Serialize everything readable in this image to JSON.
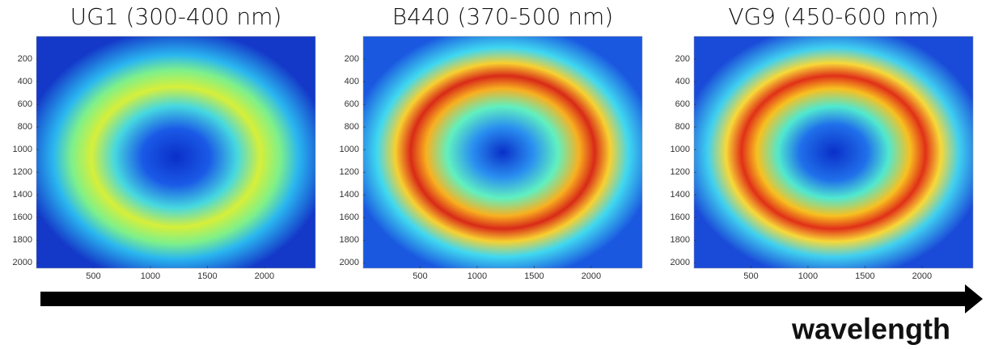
{
  "chart_data": [
    {
      "type": "image",
      "title": "UG1 (300-400 nm)",
      "xlim": [
        0,
        2448
      ],
      "ylim": [
        2048,
        0
      ],
      "xticks": [
        500,
        1000,
        1500,
        2000
      ],
      "yticks": [
        200,
        400,
        600,
        800,
        1000,
        1200,
        1400,
        1600,
        1800,
        2000
      ]
    },
    {
      "type": "image",
      "title": "B440 (370-500 nm)",
      "xlim": [
        0,
        2448
      ],
      "ylim": [
        2048,
        0
      ],
      "xticks": [
        500,
        1000,
        1500,
        2000
      ],
      "yticks": [
        200,
        400,
        600,
        800,
        1000,
        1200,
        1400,
        1600,
        1800,
        2000
      ]
    },
    {
      "type": "image",
      "title": "VG9 (450-600 nm)",
      "xlim": [
        0,
        2448
      ],
      "ylim": [
        2048,
        0
      ],
      "xticks": [
        500,
        1000,
        1500,
        2000
      ],
      "yticks": [
        200,
        400,
        600,
        800,
        1000,
        1200,
        1400,
        1600,
        1800,
        2000
      ]
    }
  ],
  "annotation": "wavelength"
}
